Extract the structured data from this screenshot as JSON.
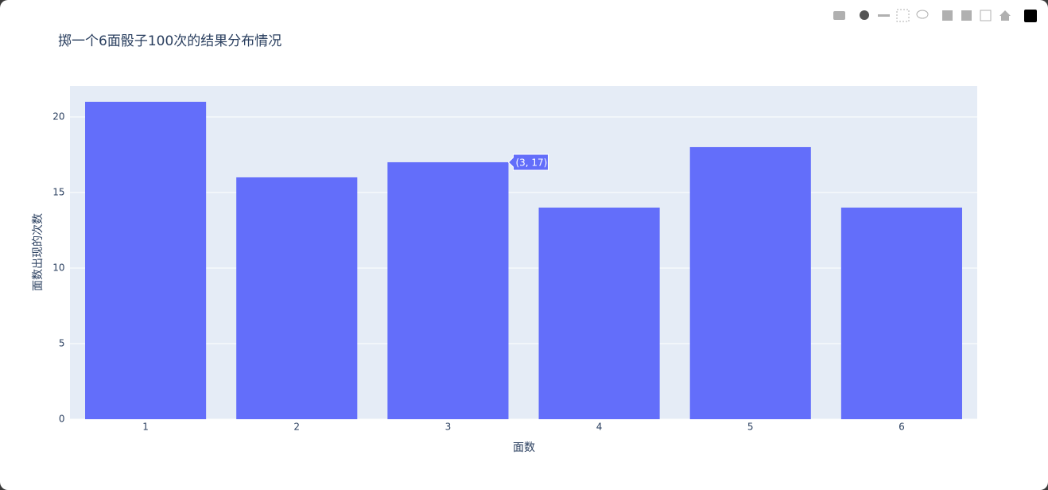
{
  "chart_data": {
    "type": "bar",
    "title": "掷一个6面骰子100次的结果分布情况",
    "x_label": "面数",
    "y_label": "面数出现的次数",
    "categories": [
      "1",
      "2",
      "3",
      "4",
      "5",
      "6"
    ],
    "values": [
      21,
      16,
      17,
      14,
      18,
      14
    ],
    "color": "#636efa",
    "ylim": [
      0,
      22.05
    ],
    "yticks": [
      0,
      5,
      10,
      15,
      20
    ],
    "grid": true,
    "hover_label": "(3, 17)"
  }
}
